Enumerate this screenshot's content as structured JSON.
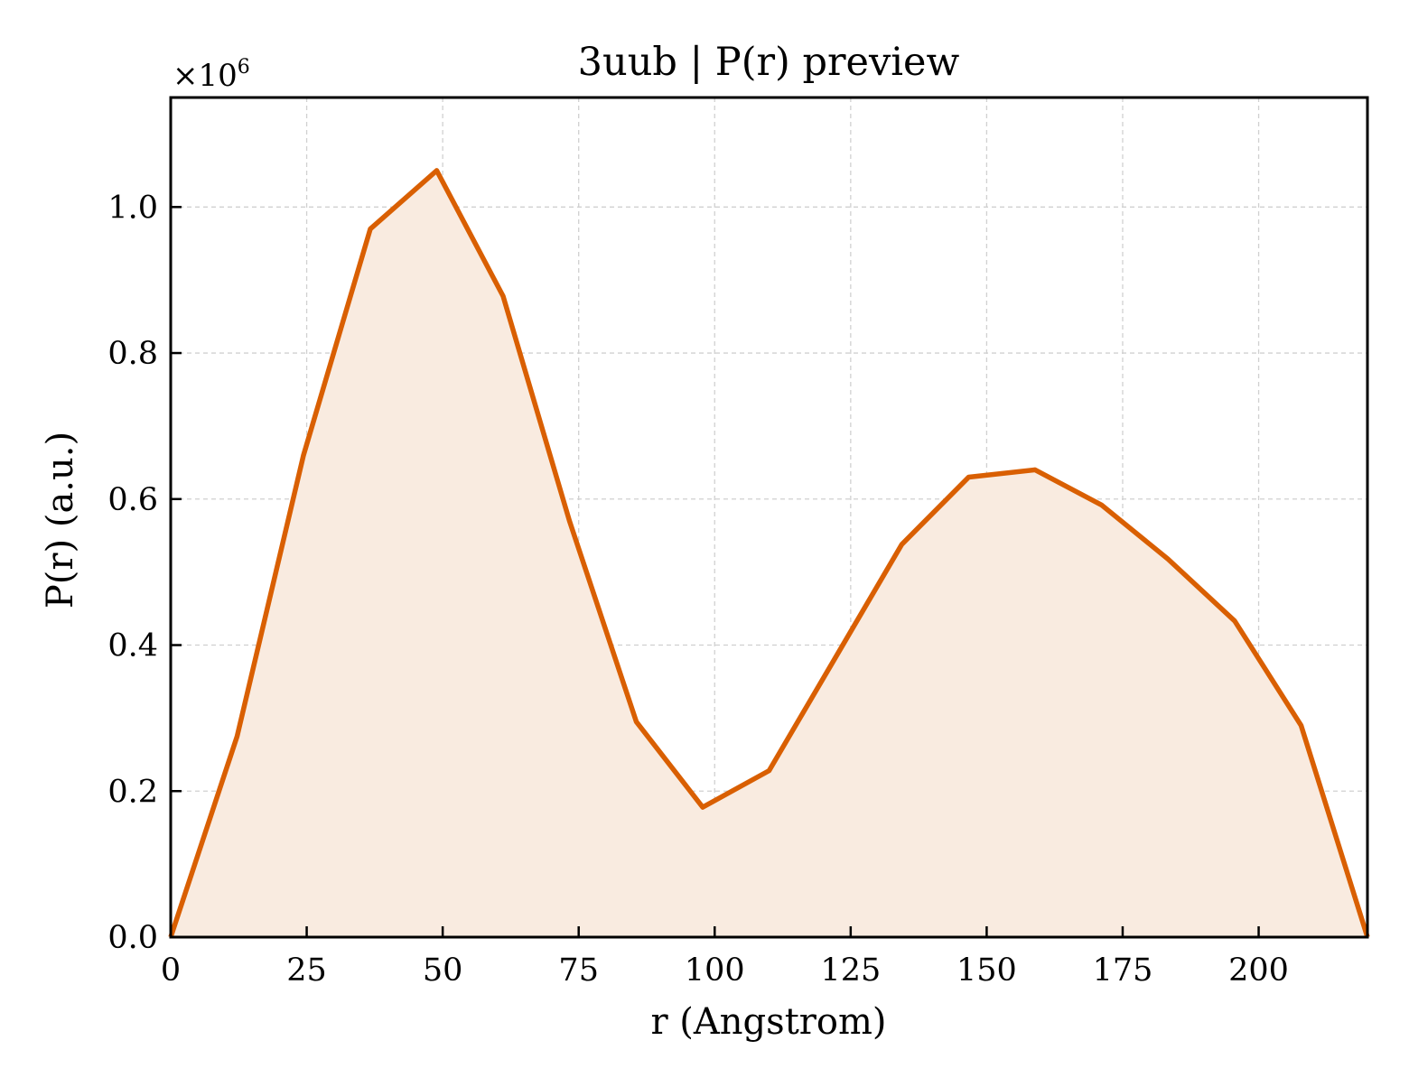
{
  "chart_data": {
    "type": "area",
    "title": "3uub | P(r) preview",
    "xlabel": "r (Angstrom)",
    "ylabel": "P(r) (a.u.)",
    "y_multiplier_base": "×10",
    "y_multiplier_exp": "6",
    "xlim": [
      0,
      220
    ],
    "ylim": [
      0,
      1.15
    ],
    "x_ticks": [
      0,
      25,
      50,
      75,
      100,
      125,
      150,
      175,
      200
    ],
    "x_tick_labels": [
      "0",
      "25",
      "50",
      "75",
      "100",
      "125",
      "150",
      "175",
      "200"
    ],
    "y_ticks": [
      0.0,
      0.2,
      0.4,
      0.6,
      0.8,
      1.0
    ],
    "y_tick_labels": [
      "0.0",
      "0.2",
      "0.4",
      "0.6",
      "0.8",
      "1.0"
    ],
    "grid": true,
    "series": [
      {
        "x": [
          0,
          12.2,
          24.4,
          36.7,
          48.9,
          61.1,
          73.3,
          85.6,
          97.8,
          110.0,
          122.2,
          134.4,
          146.7,
          158.9,
          171.1,
          183.3,
          195.6,
          207.8,
          220.0
        ],
        "y": [
          0.0,
          0.275,
          0.66,
          0.97,
          1.05,
          0.878,
          0.57,
          0.295,
          0.178,
          0.228,
          0.383,
          0.538,
          0.63,
          0.64,
          0.592,
          0.518,
          0.433,
          0.29,
          0.0
        ],
        "color": "#d95f02",
        "fill_color": "#f9ebe0"
      }
    ]
  }
}
